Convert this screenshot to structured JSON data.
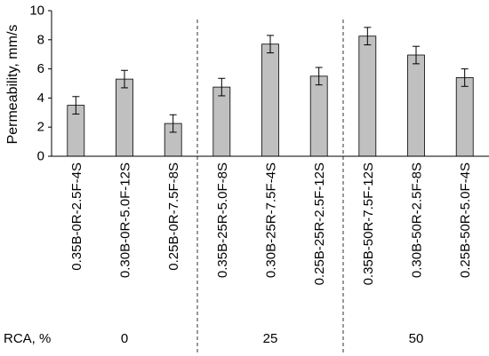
{
  "chart_data": {
    "type": "bar",
    "ylabel": "Permeability, mm/s",
    "ylim": [
      0,
      10
    ],
    "yticks": [
      0,
      2,
      4,
      6,
      8,
      10
    ],
    "grid": false,
    "bar_color": "#c0c0c0",
    "categories": [
      "0.35B-0R-2.5F-4S",
      "0.30B-0R-5.0F-12S",
      "0.25B-0R-7.5F-8S",
      "0.35B-25R-5.0F-8S",
      "0.30B-25R-7.5F-4S",
      "0.25B-25R-2.5F-12S",
      "0.35B-50R-7.5F-12S",
      "0.30B-50R-2.5F-8S",
      "0.25B-50R-5.0F-4S"
    ],
    "series": [
      {
        "values": [
          3.5,
          5.3,
          2.25,
          4.75,
          7.7,
          5.5,
          8.25,
          6.95,
          5.4
        ],
        "error": [
          0.6,
          0.6,
          0.6,
          0.6,
          0.6,
          0.6,
          0.6,
          0.6,
          0.6
        ]
      }
    ],
    "group_axis": {
      "label": "RCA, %",
      "groups": [
        {
          "label": "0",
          "count": 3
        },
        {
          "label": "25",
          "count": 3
        },
        {
          "label": "50",
          "count": 3
        }
      ]
    }
  }
}
